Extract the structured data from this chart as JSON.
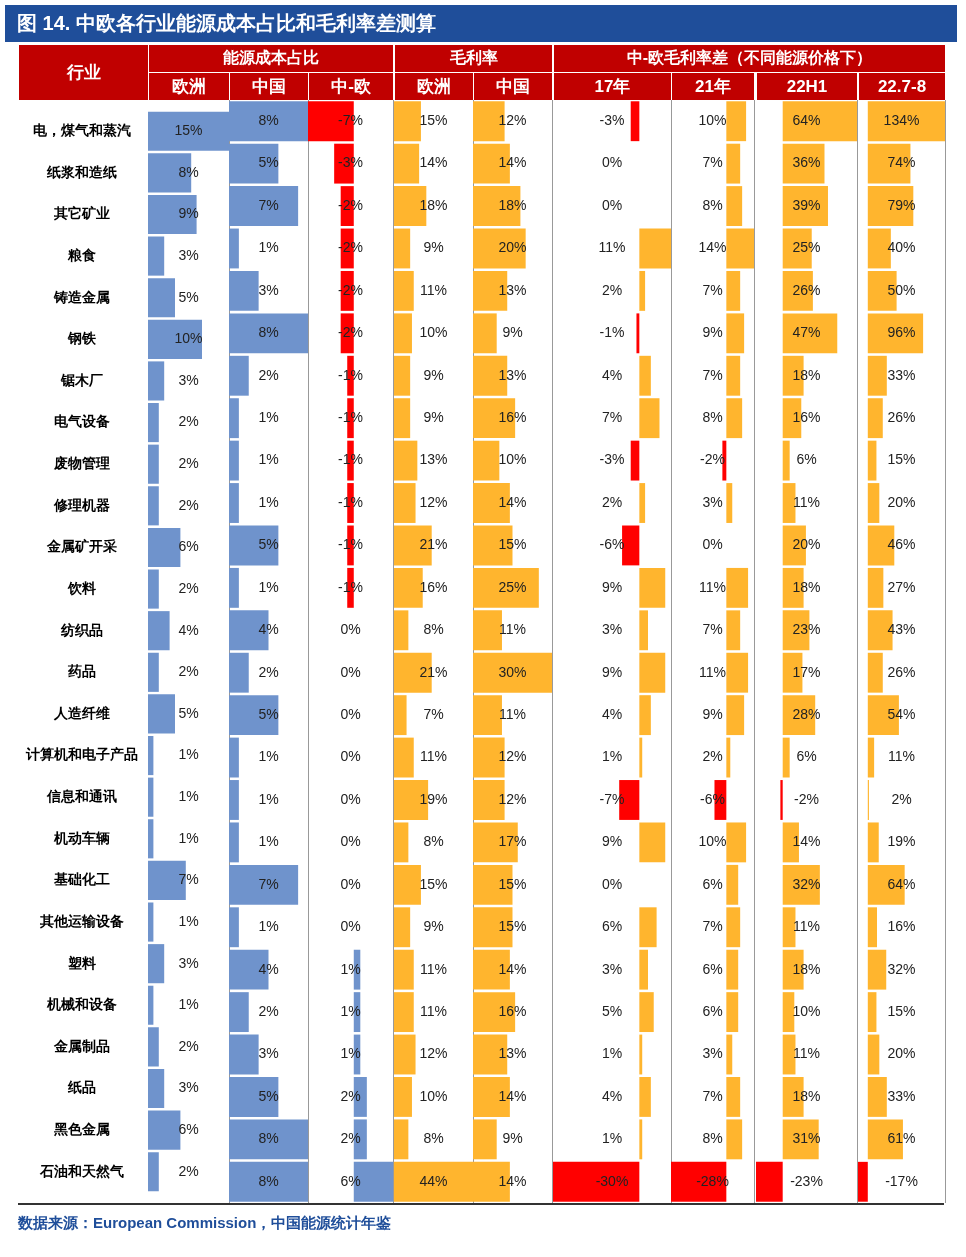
{
  "chart_data": [
    {
      "type": "bar",
      "orientation": "horizontal",
      "title": "图 14. 中欧各行业能源成本占比和毛利率差测算",
      "xlabel": "欧洲",
      "ylabel": "行业",
      "tick_labels": "y",
      "annotations": [
        "数据来源：European Commission，中国能源统计年鉴"
      ],
      "categories": [
        "电，煤气和蒸汽",
        "纸浆和造纸",
        "其它矿业",
        "粮食",
        "铸造金属",
        "钢铁",
        "锯木厂",
        "电气设备",
        "废物管理",
        "修理机器",
        "金属矿开采",
        "饮料",
        "纺织品",
        "药品",
        "人造纤维",
        "计算机和电子产品",
        "信息和通讯",
        "机动车辆",
        "基础化工",
        "其他运输设备",
        "塑料",
        "机械和设备",
        "金属制品",
        "纸品",
        "黑色金属",
        "石油和天然气"
      ],
      "values": [
        15,
        8,
        9,
        3,
        5,
        10,
        3,
        2,
        2,
        2,
        6,
        2,
        4,
        2,
        5,
        1,
        1,
        1,
        7,
        1,
        3,
        1,
        2,
        3,
        6,
        2
      ],
      "value_labels": [
        "15%",
        "8%",
        "9%",
        "3%",
        "5%",
        "10%",
        "3%",
        "2%",
        "2%",
        "2%",
        "6%",
        "2%",
        "4%",
        "2%",
        "5%",
        "1%",
        "1%",
        "1%",
        "7%",
        "1%",
        "3%",
        "1%",
        "2%",
        "3%",
        "6%",
        "2%"
      ],
      "color": "#6f93cc"
    },
    {
      "type": "bar",
      "orientation": "horizontal",
      "subtitle": "能源成本占比",
      "xlabel": "中国",
      "tick_labels": false,
      "categories": [
        null,
        null,
        null,
        null,
        null,
        null,
        null,
        null,
        null,
        null,
        null,
        null,
        null,
        null,
        null,
        null,
        null,
        null,
        null,
        null,
        null,
        null,
        null,
        null,
        null,
        null
      ],
      "values": [
        8,
        5,
        7,
        1,
        3,
        8,
        2,
        1,
        1,
        1,
        5,
        1,
        4,
        2,
        5,
        1,
        1,
        1,
        7,
        1,
        4,
        2,
        3,
        5,
        8,
        8
      ],
      "value_labels": [
        "8%",
        "5%",
        "7%",
        "1%",
        "3%",
        "8%",
        "2%",
        "1%",
        "1%",
        "1%",
        "5%",
        "1%",
        "4%",
        "2%",
        "5%",
        "1%",
        "1%",
        "1%",
        "7%",
        "1%",
        "4%",
        "2%",
        "3%",
        "5%",
        "8%",
        "8%"
      ],
      "color": "#6f93cc"
    },
    {
      "type": "bar",
      "orientation": "horizontal",
      "xlabel": "中-欧",
      "tick_labels": false,
      "categories": [
        null,
        null,
        null,
        null,
        null,
        null,
        null,
        null,
        null,
        null,
        null,
        null,
        null,
        null,
        null,
        null,
        null,
        null,
        null,
        null,
        null,
        null,
        null,
        null,
        null,
        null
      ],
      "values": [
        -7,
        -3,
        -2,
        -2,
        -2,
        -2,
        -1,
        -1,
        -1,
        -1,
        -1,
        -1,
        0,
        0,
        0,
        0,
        0,
        0,
        0,
        0,
        1,
        1,
        1,
        2,
        2,
        6
      ],
      "value_labels": [
        "-7%",
        "-3%",
        "-2%",
        "-2%",
        "-2%",
        "-2%",
        "-1%",
        "-1%",
        "-1%",
        "-1%",
        "-1%",
        "-1%",
        "0%",
        "0%",
        "0%",
        "0%",
        "0%",
        "0%",
        "0%",
        "0%",
        "1%",
        "1%",
        "1%",
        "2%",
        "2%",
        "6%"
      ],
      "colors": [
        "#ff0000",
        "#ff0000",
        "#ff0000",
        "#ff0000",
        "#ff0000",
        "#ff0000",
        "#ff0000",
        "#ff0000",
        "#ff0000",
        "#ff0000",
        "#ff0000",
        "#ff0000",
        "#6f93cc",
        "#6f93cc",
        "#6f93cc",
        "#6f93cc",
        "#6f93cc",
        "#6f93cc",
        "#6f93cc",
        "#6f93cc",
        "#6f93cc",
        "#6f93cc",
        "#6f93cc",
        "#6f93cc",
        "#6f93cc",
        "#6f93cc"
      ]
    },
    {
      "type": "bar",
      "orientation": "horizontal",
      "subtitle": "毛利率",
      "xlabel": "欧洲",
      "tick_labels": false,
      "categories": [
        null,
        null,
        null,
        null,
        null,
        null,
        null,
        null,
        null,
        null,
        null,
        null,
        null,
        null,
        null,
        null,
        null,
        null,
        null,
        null,
        null,
        null,
        null,
        null,
        null,
        null
      ],
      "values": [
        15,
        14,
        18,
        9,
        11,
        10,
        9,
        9,
        13,
        12,
        21,
        16,
        8,
        21,
        7,
        11,
        19,
        8,
        15,
        9,
        11,
        11,
        12,
        10,
        8,
        44
      ],
      "value_labels": [
        "15%",
        "14%",
        "18%",
        "9%",
        "11%",
        "10%",
        "9%",
        "9%",
        "13%",
        "12%",
        "21%",
        "16%",
        "8%",
        "21%",
        "7%",
        "11%",
        "19%",
        "8%",
        "15%",
        "9%",
        "11%",
        "11%",
        "12%",
        "10%",
        "8%",
        "44%"
      ],
      "color": "#ffb52e"
    },
    {
      "type": "bar",
      "orientation": "horizontal",
      "xlabel": "中国",
      "tick_labels": false,
      "categories": [
        null,
        null,
        null,
        null,
        null,
        null,
        null,
        null,
        null,
        null,
        null,
        null,
        null,
        null,
        null,
        null,
        null,
        null,
        null,
        null,
        null,
        null,
        null,
        null,
        null,
        null
      ],
      "values": [
        12,
        14,
        18,
        20,
        13,
        9,
        13,
        16,
        10,
        14,
        15,
        25,
        11,
        30,
        11,
        12,
        12,
        17,
        15,
        15,
        14,
        16,
        13,
        14,
        9,
        14
      ],
      "value_labels": [
        "12%",
        "14%",
        "18%",
        "20%",
        "13%",
        "9%",
        "13%",
        "16%",
        "10%",
        "14%",
        "15%",
        "25%",
        "11%",
        "30%",
        "11%",
        "12%",
        "12%",
        "17%",
        "15%",
        "15%",
        "14%",
        "16%",
        "13%",
        "14%",
        "9%",
        "14%"
      ],
      "color": "#ffb52e"
    },
    {
      "type": "bar",
      "orientation": "horizontal",
      "subtitle": "中-欧毛利率差（不同能源价格下）",
      "xlabel": "17年",
      "tick_labels": false,
      "categories": [
        null,
        null,
        null,
        null,
        null,
        null,
        null,
        null,
        null,
        null,
        null,
        null,
        null,
        null,
        null,
        null,
        null,
        null,
        null,
        null,
        null,
        null,
        null,
        null,
        null,
        null
      ],
      "values": [
        -3,
        0,
        0,
        11,
        2,
        -1,
        4,
        7,
        -3,
        2,
        -6,
        9,
        3,
        9,
        4,
        1,
        -7,
        9,
        0,
        6,
        3,
        5,
        1,
        4,
        1,
        -30
      ],
      "value_labels": [
        "-3%",
        "0%",
        "0%",
        "11%",
        "2%",
        "-1%",
        "4%",
        "7%",
        "-3%",
        "2%",
        "-6%",
        "9%",
        "3%",
        "9%",
        "4%",
        "1%",
        "-7%",
        "9%",
        "0%",
        "6%",
        "3%",
        "5%",
        "1%",
        "4%",
        "1%",
        "-30%"
      ],
      "colors": [
        "#ff0000",
        "#ffb52e",
        "#ffb52e",
        "#ffb52e",
        "#ffb52e",
        "#ff0000",
        "#ffb52e",
        "#ffb52e",
        "#ff0000",
        "#ffb52e",
        "#ff0000",
        "#ffb52e",
        "#ffb52e",
        "#ffb52e",
        "#ffb52e",
        "#ffb52e",
        "#ff0000",
        "#ffb52e",
        "#ffb52e",
        "#ffb52e",
        "#ffb52e",
        "#ffb52e",
        "#ffb52e",
        "#ffb52e",
        "#ffb52e",
        "#ff0000"
      ]
    },
    {
      "type": "bar",
      "orientation": "horizontal",
      "xlabel": "21年",
      "tick_labels": false,
      "categories": [
        null,
        null,
        null,
        null,
        null,
        null,
        null,
        null,
        null,
        null,
        null,
        null,
        null,
        null,
        null,
        null,
        null,
        null,
        null,
        null,
        null,
        null,
        null,
        null,
        null,
        null
      ],
      "values": [
        10,
        7,
        8,
        14,
        7,
        9,
        7,
        8,
        -2,
        3,
        0,
        11,
        7,
        11,
        9,
        2,
        -6,
        10,
        6,
        7,
        6,
        6,
        3,
        7,
        8,
        -28
      ],
      "value_labels": [
        "10%",
        "7%",
        "8%",
        "14%",
        "7%",
        "9%",
        "7%",
        "8%",
        "-2%",
        "3%",
        "0%",
        "11%",
        "7%",
        "11%",
        "9%",
        "2%",
        "-6%",
        "10%",
        "6%",
        "7%",
        "6%",
        "6%",
        "3%",
        "7%",
        "8%",
        "-28%"
      ],
      "colors": [
        "#ffb52e",
        "#ffb52e",
        "#ffb52e",
        "#ffb52e",
        "#ffb52e",
        "#ffb52e",
        "#ffb52e",
        "#ffb52e",
        "#ff0000",
        "#ffb52e",
        "#ffb52e",
        "#ffb52e",
        "#ffb52e",
        "#ffb52e",
        "#ffb52e",
        "#ffb52e",
        "#ff0000",
        "#ffb52e",
        "#ffb52e",
        "#ffb52e",
        "#ffb52e",
        "#ffb52e",
        "#ffb52e",
        "#ffb52e",
        "#ffb52e",
        "#ff0000"
      ]
    },
    {
      "type": "bar",
      "orientation": "horizontal",
      "xlabel": "22H1",
      "tick_labels": false,
      "categories": [
        null,
        null,
        null,
        null,
        null,
        null,
        null,
        null,
        null,
        null,
        null,
        null,
        null,
        null,
        null,
        null,
        null,
        null,
        null,
        null,
        null,
        null,
        null,
        null,
        null,
        null
      ],
      "values": [
        64,
        36,
        39,
        25,
        26,
        47,
        18,
        16,
        6,
        11,
        20,
        18,
        23,
        17,
        28,
        6,
        -2,
        14,
        32,
        11,
        18,
        10,
        11,
        18,
        31,
        -23
      ],
      "value_labels": [
        "64%",
        "36%",
        "39%",
        "25%",
        "26%",
        "47%",
        "18%",
        "16%",
        "6%",
        "11%",
        "20%",
        "18%",
        "23%",
        "17%",
        "28%",
        "6%",
        "-2%",
        "14%",
        "32%",
        "11%",
        "18%",
        "10%",
        "11%",
        "18%",
        "31%",
        "-23%"
      ],
      "colors": [
        "#ffb52e",
        "#ffb52e",
        "#ffb52e",
        "#ffb52e",
        "#ffb52e",
        "#ffb52e",
        "#ffb52e",
        "#ffb52e",
        "#ffb52e",
        "#ffb52e",
        "#ffb52e",
        "#ffb52e",
        "#ffb52e",
        "#ffb52e",
        "#ffb52e",
        "#ffb52e",
        "#ff0000",
        "#ffb52e",
        "#ffb52e",
        "#ffb52e",
        "#ffb52e",
        "#ffb52e",
        "#ffb52e",
        "#ffb52e",
        "#ffb52e",
        "#ff0000"
      ]
    },
    {
      "type": "bar",
      "orientation": "horizontal",
      "xlabel": "22.7-8",
      "tick_labels": false,
      "categories": [
        null,
        null,
        null,
        null,
        null,
        null,
        null,
        null,
        null,
        null,
        null,
        null,
        null,
        null,
        null,
        null,
        null,
        null,
        null,
        null,
        null,
        null,
        null,
        null,
        null,
        null
      ],
      "values": [
        134,
        74,
        79,
        40,
        50,
        96,
        33,
        26,
        15,
        20,
        46,
        27,
        43,
        26,
        54,
        11,
        2,
        19,
        64,
        16,
        32,
        15,
        20,
        33,
        61,
        -17
      ],
      "value_labels": [
        "134%",
        "74%",
        "79%",
        "40%",
        "50%",
        "96%",
        "33%",
        "26%",
        "15%",
        "20%",
        "46%",
        "27%",
        "43%",
        "26%",
        "54%",
        "11%",
        "2%",
        "19%",
        "64%",
        "16%",
        "32%",
        "15%",
        "20%",
        "33%",
        "61%",
        "-17%"
      ],
      "colors": [
        "#ffb52e",
        "#ffb52e",
        "#ffb52e",
        "#ffb52e",
        "#ffb52e",
        "#ffb52e",
        "#ffb52e",
        "#ffb52e",
        "#ffb52e",
        "#ffb52e",
        "#ffb52e",
        "#ffb52e",
        "#ffb52e",
        "#ffb52e",
        "#ffb52e",
        "#ffb52e",
        "#ffb52e",
        "#ffb52e",
        "#ffb52e",
        "#ffb52e",
        "#ffb52e",
        "#ffb52e",
        "#ffb52e",
        "#ffb52e",
        "#ffb52e",
        "#ff0000"
      ]
    }
  ]
}
